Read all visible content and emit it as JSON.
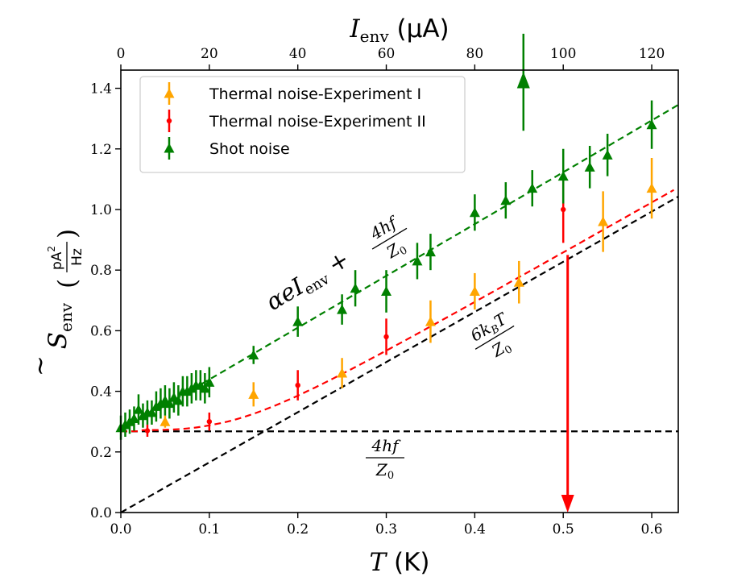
{
  "chart_data": {
    "type": "scatter",
    "xlabel": "T (K)",
    "xlabel_top": "I_env (μA)",
    "ylabel": "S̃_env (pA²/Hz)",
    "xlim": [
      0,
      0.63
    ],
    "ylim": [
      0,
      1.46
    ],
    "x_top_lim": [
      0,
      126
    ],
    "x_ticks": [
      "0.0",
      "0.1",
      "0.2",
      "0.3",
      "0.4",
      "0.5",
      "0.6"
    ],
    "x_top_ticks": [
      "0",
      "20",
      "40",
      "60",
      "80",
      "100",
      "120"
    ],
    "y_ticks": [
      "0.0",
      "0.2",
      "0.4",
      "0.6",
      "0.8",
      "1.0",
      "1.2",
      "1.4"
    ],
    "legend_position": "top-left",
    "series": [
      {
        "name": "Thermal noise-Experiment I",
        "color": "#FFA500",
        "marker": "triangle",
        "x": [
          0.05,
          0.15,
          0.25,
          0.35,
          0.4,
          0.45,
          0.545,
          0.6
        ],
        "y": [
          0.3,
          0.39,
          0.46,
          0.63,
          0.73,
          0.76,
          0.96,
          1.07
        ],
        "err": [
          0.02,
          0.04,
          0.05,
          0.07,
          0.06,
          0.07,
          0.1,
          0.1
        ]
      },
      {
        "name": "Thermal noise-Experiment II",
        "color": "#FF0000",
        "marker": "dot",
        "x": [
          0.03,
          0.1,
          0.2,
          0.3,
          0.5
        ],
        "y": [
          0.27,
          0.3,
          0.42,
          0.58,
          1.0
        ],
        "err": [
          0.02,
          0.03,
          0.05,
          0.06,
          0.11
        ]
      },
      {
        "name": "Shot noise",
        "color": "#008000",
        "marker": "triangle",
        "x_unit": "μA",
        "x": [
          0,
          1,
          2,
          3,
          4,
          5,
          6,
          7,
          8,
          9,
          10,
          11,
          12,
          13,
          14,
          15,
          16,
          17,
          18,
          19,
          20,
          30,
          40,
          50,
          53,
          60,
          67,
          70,
          80,
          87,
          91,
          93,
          100,
          106,
          110,
          120
        ],
        "y": [
          0.28,
          0.29,
          0.3,
          0.31,
          0.34,
          0.32,
          0.33,
          0.33,
          0.35,
          0.36,
          0.37,
          0.36,
          0.38,
          0.37,
          0.4,
          0.4,
          0.41,
          0.42,
          0.42,
          0.41,
          0.43,
          0.52,
          0.63,
          0.67,
          0.74,
          0.73,
          0.83,
          0.86,
          0.99,
          1.03,
          1.42,
          1.07,
          1.11,
          1.14,
          1.18,
          1.28
        ],
        "err": [
          0.04,
          0.04,
          0.04,
          0.04,
          0.05,
          0.04,
          0.04,
          0.04,
          0.05,
          0.05,
          0.05,
          0.05,
          0.05,
          0.05,
          0.05,
          0.05,
          0.05,
          0.05,
          0.05,
          0.05,
          0.05,
          0.03,
          0.05,
          0.05,
          0.06,
          0.07,
          0.06,
          0.06,
          0.06,
          0.06,
          0.16,
          0.06,
          0.09,
          0.07,
          0.07,
          0.08
        ]
      }
    ],
    "fits": [
      {
        "label": "4hf/Z0",
        "color": "#000000",
        "kind": "constant",
        "value": 0.268
      },
      {
        "label": "6kBT/Z0",
        "color": "#000000",
        "kind": "linear_T",
        "slope": 1.655
      },
      {
        "label": "thermal fit",
        "color": "#FF0000",
        "kind": "coth"
      },
      {
        "label": "αeI_env + 4hf/Z0",
        "color": "#008000",
        "kind": "shot"
      }
    ],
    "outlier_arrow": {
      "x": 0.505,
      "from": 0.85,
      "to": 0.0,
      "color": "#FF0000"
    }
  },
  "texts": {
    "x_title_prefix": "T",
    "x_title_suffix": " (K)",
    "x_top_title_main": "I",
    "x_top_title_sub": "env",
    "x_top_title_suffix_mu": " (μ",
    "x_top_title_unit": "A)",
    "y_title_main": "S",
    "y_title_sub": "env",
    "y_unit_num": "pA",
    "y_unit_sup": "2",
    "y_unit_den": "Hz",
    "ann_shot_main": "αeI",
    "ann_shot_sub": "env",
    "ann_shot_plus": " + ",
    "ann_frac_num_4hf": "4hf",
    "ann_frac_den_z": "Z",
    "ann_frac_den_sub": "0",
    "ann_thermal_num": "6k",
    "ann_thermal_num_sub": "B",
    "ann_thermal_num_T": "T"
  }
}
